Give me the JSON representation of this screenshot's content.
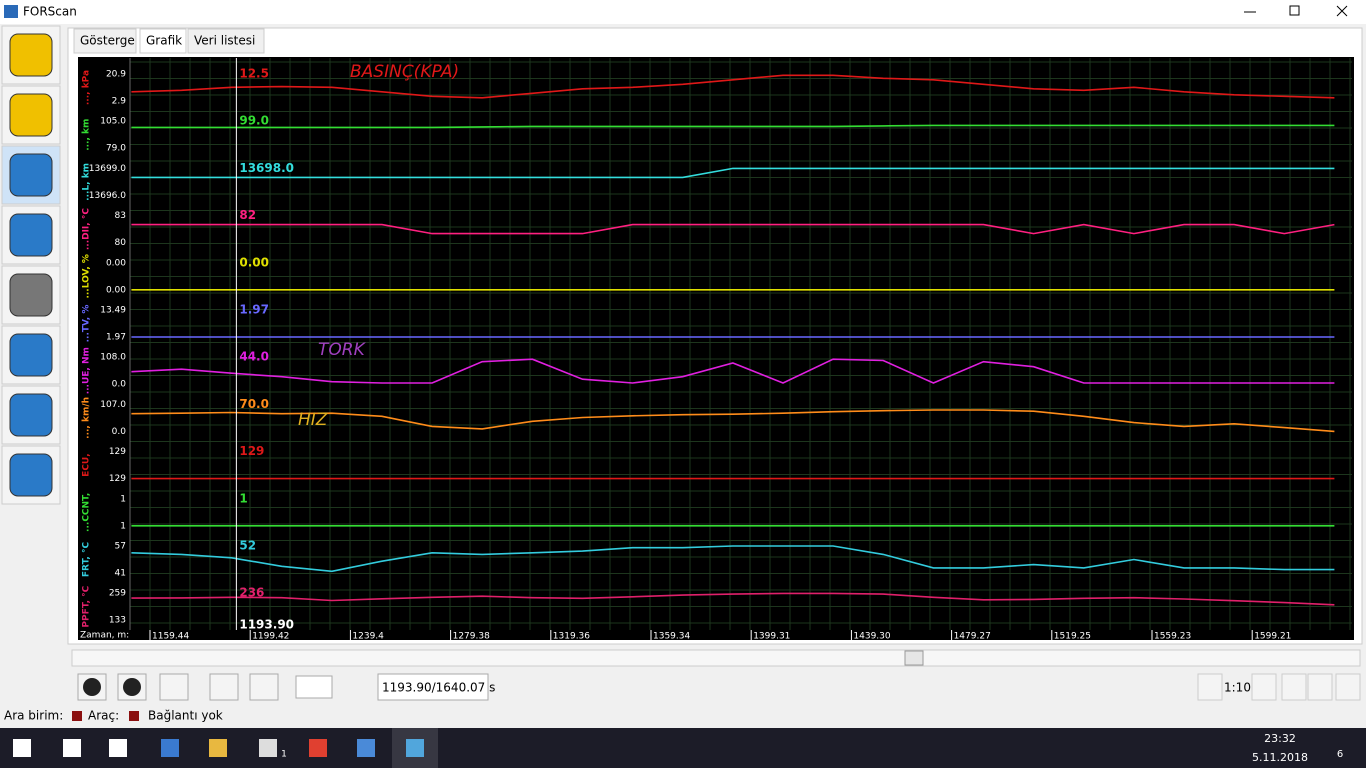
{
  "window": {
    "title": "FORScan"
  },
  "tabs": [
    "Gösterge",
    "Grafik",
    "Veri listesi"
  ],
  "graph": {
    "time_label": "Zaman, m:",
    "time_ticks": [
      1159.44,
      1199.42,
      1239.4,
      1279.38,
      1319.36,
      1359.34,
      1399.31,
      {
        "value": 1439.3,
        "label": "1439.30"
      },
      1479.27,
      1519.25,
      1559.23,
      1599.21
    ],
    "cursor": {
      "value": 1193.9,
      "label": "1193.90"
    },
    "trace_times": [
      1152,
      1172,
      1192,
      1212,
      1232,
      1252,
      1272,
      1292,
      1312,
      1332,
      1352,
      1372,
      1392,
      1412,
      1432,
      1452,
      1472,
      1492,
      1512,
      1532,
      1552,
      1572,
      1592,
      1612,
      1632
    ],
    "channels": [
      {
        "name": "..., kPa",
        "color": "#e01818",
        "hi": 20.9,
        "lo": 2.9,
        "current": 12.5,
        "trace": [
          9,
          10,
          12,
          12.5,
          12,
          9,
          6,
          5,
          8,
          11,
          12,
          14,
          17,
          20,
          20,
          18,
          17,
          14,
          11,
          10,
          12,
          9,
          7,
          6,
          5
        ]
      },
      {
        "name": "..., km",
        "color": "#33dd33",
        "hi": {
          "value": 105,
          "label": "105.0"
        },
        "lo": {
          "value": 79,
          "label": "79.0"
        },
        "current": {
          "value": 99,
          "label": "99.0"
        },
        "trace": [
          99,
          99,
          99,
          99,
          99,
          99,
          99,
          99.5,
          100,
          100,
          100,
          100,
          100,
          100,
          100,
          100.5,
          101,
          101,
          101,
          101,
          101,
          101,
          101,
          101,
          101
        ]
      },
      {
        "name": "...L, km",
        "color": "#33dddd",
        "hi": {
          "value": 13699,
          "label": "13699.0"
        },
        "lo": {
          "value": 13696,
          "label": "13696.0"
        },
        "current": {
          "value": 13698,
          "label": "13698.0"
        },
        "trace": [
          13698,
          13698,
          13698,
          13698,
          13698,
          13698,
          13698,
          13698,
          13698,
          13698,
          13698,
          13698,
          13699,
          13699,
          13699,
          13699,
          13699,
          13699,
          13699,
          13699,
          13699,
          13699,
          13699,
          13699,
          13699
        ]
      },
      {
        "name": "...DII, °C",
        "color": "#ff2080",
        "hi": 83,
        "lo": 80,
        "current": 82,
        "trace": [
          82,
          82,
          82,
          82,
          82,
          82,
          81,
          81,
          81,
          81,
          82,
          82,
          82,
          82,
          82,
          82,
          82,
          82,
          81,
          82,
          81,
          82,
          82,
          81,
          82
        ]
      },
      {
        "name": "...LOV, %",
        "color": "#e0e000",
        "hi": {
          "value": 0,
          "label": "0.00"
        },
        "lo": {
          "value": 0,
          "label": "0.00"
        },
        "current": {
          "value": 0,
          "label": "0.00"
        },
        "trace": [
          0,
          0,
          0,
          0,
          0,
          0,
          0,
          0,
          0,
          0,
          0,
          0,
          0,
          0,
          0,
          0,
          0,
          0,
          0,
          0,
          0,
          0,
          0,
          0,
          0
        ]
      },
      {
        "name": "...TV, %",
        "color": "#6868ff",
        "hi": 13.49,
        "lo": 1.97,
        "current": 1.97,
        "trace": [
          1.97,
          1.97,
          1.97,
          1.97,
          1.97,
          1.97,
          1.97,
          1.97,
          1.97,
          1.97,
          1.97,
          1.97,
          1.97,
          1.97,
          1.97,
          1.97,
          1.97,
          1.97,
          1.97,
          1.97,
          1.97,
          1.97,
          1.97,
          1.97,
          1.97
        ]
      },
      {
        "name": "...UE, Nm",
        "color": "#e020e0",
        "hi": {
          "value": 108,
          "label": "108.0"
        },
        "lo": {
          "value": 0,
          "label": "0.0"
        },
        "current": {
          "value": 44,
          "label": "44.0"
        },
        "trace": [
          50,
          60,
          44,
          30,
          10,
          5,
          5,
          90,
          100,
          20,
          5,
          30,
          85,
          5,
          100,
          95,
          5,
          90,
          70,
          5,
          5,
          5,
          5,
          5,
          5
        ]
      },
      {
        "name": "..., km/h",
        "color": "#ff8c1a",
        "hi": {
          "value": 107,
          "label": "107.0"
        },
        "lo": {
          "value": 0,
          "label": "0.0"
        },
        "current": {
          "value": 70,
          "label": "70.0"
        },
        "trace": [
          70,
          72,
          75,
          70,
          72,
          60,
          20,
          10,
          40,
          55,
          62,
          66,
          68,
          72,
          78,
          82,
          85,
          85,
          80,
          60,
          35,
          20,
          30,
          15,
          0
        ]
      },
      {
        "name": "ECU,",
        "color": "#dd1818",
        "hi": 129,
        "lo": 129,
        "current": 129,
        "trace": [
          129,
          129,
          129,
          129,
          129,
          129,
          129,
          129,
          129,
          129,
          129,
          129,
          129,
          129,
          129,
          129,
          129,
          129,
          129,
          129,
          129,
          129,
          129,
          129,
          129
        ]
      },
      {
        "name": "...CCNT,",
        "color": "#33dd33",
        "hi": 1,
        "lo": 1,
        "current": 1,
        "trace": [
          1,
          1,
          1,
          1,
          1,
          1,
          1,
          1,
          1,
          1,
          1,
          1,
          1,
          1,
          1,
          1,
          1,
          1,
          1,
          1,
          1,
          1,
          1,
          1,
          1
        ]
      },
      {
        "name": "FRT, °C",
        "color": "#33ccdd",
        "hi": 57,
        "lo": 41,
        "current": 52,
        "trace": [
          53,
          52,
          50,
          45,
          42,
          48,
          53,
          52,
          53,
          54,
          56,
          56,
          57,
          57,
          57,
          52,
          44,
          44,
          46,
          44,
          49,
          44,
          44,
          43,
          43
        ]
      },
      {
        "name": "PPFT, °C",
        "color": "#e0206a",
        "hi": 259,
        "lo": 133,
        "current": 236,
        "trace": [
          236,
          237,
          240,
          238,
          225,
          233,
          240,
          245,
          238,
          235,
          242,
          250,
          255,
          258,
          258,
          255,
          240,
          228,
          230,
          235,
          238,
          232,
          224,
          215,
          205
        ]
      }
    ],
    "annotations": [
      {
        "text": "BASINÇ(KPA)",
        "color": "#e01818"
      },
      {
        "text": "TORK",
        "color": "#a040c0"
      },
      {
        "text": "HIZ",
        "color": "#e0b020"
      }
    ]
  },
  "toolbar": {
    "position": "1193.90/1640.07 s",
    "zoom": "1:10"
  },
  "status": {
    "interface": "Ara birim:",
    "vehicle": "Araç:",
    "connection": "Bağlantı yok"
  },
  "taskbar": {
    "time": "23:32",
    "date": "5.11.2018",
    "notifications": 6,
    "mail_badge": 1
  }
}
